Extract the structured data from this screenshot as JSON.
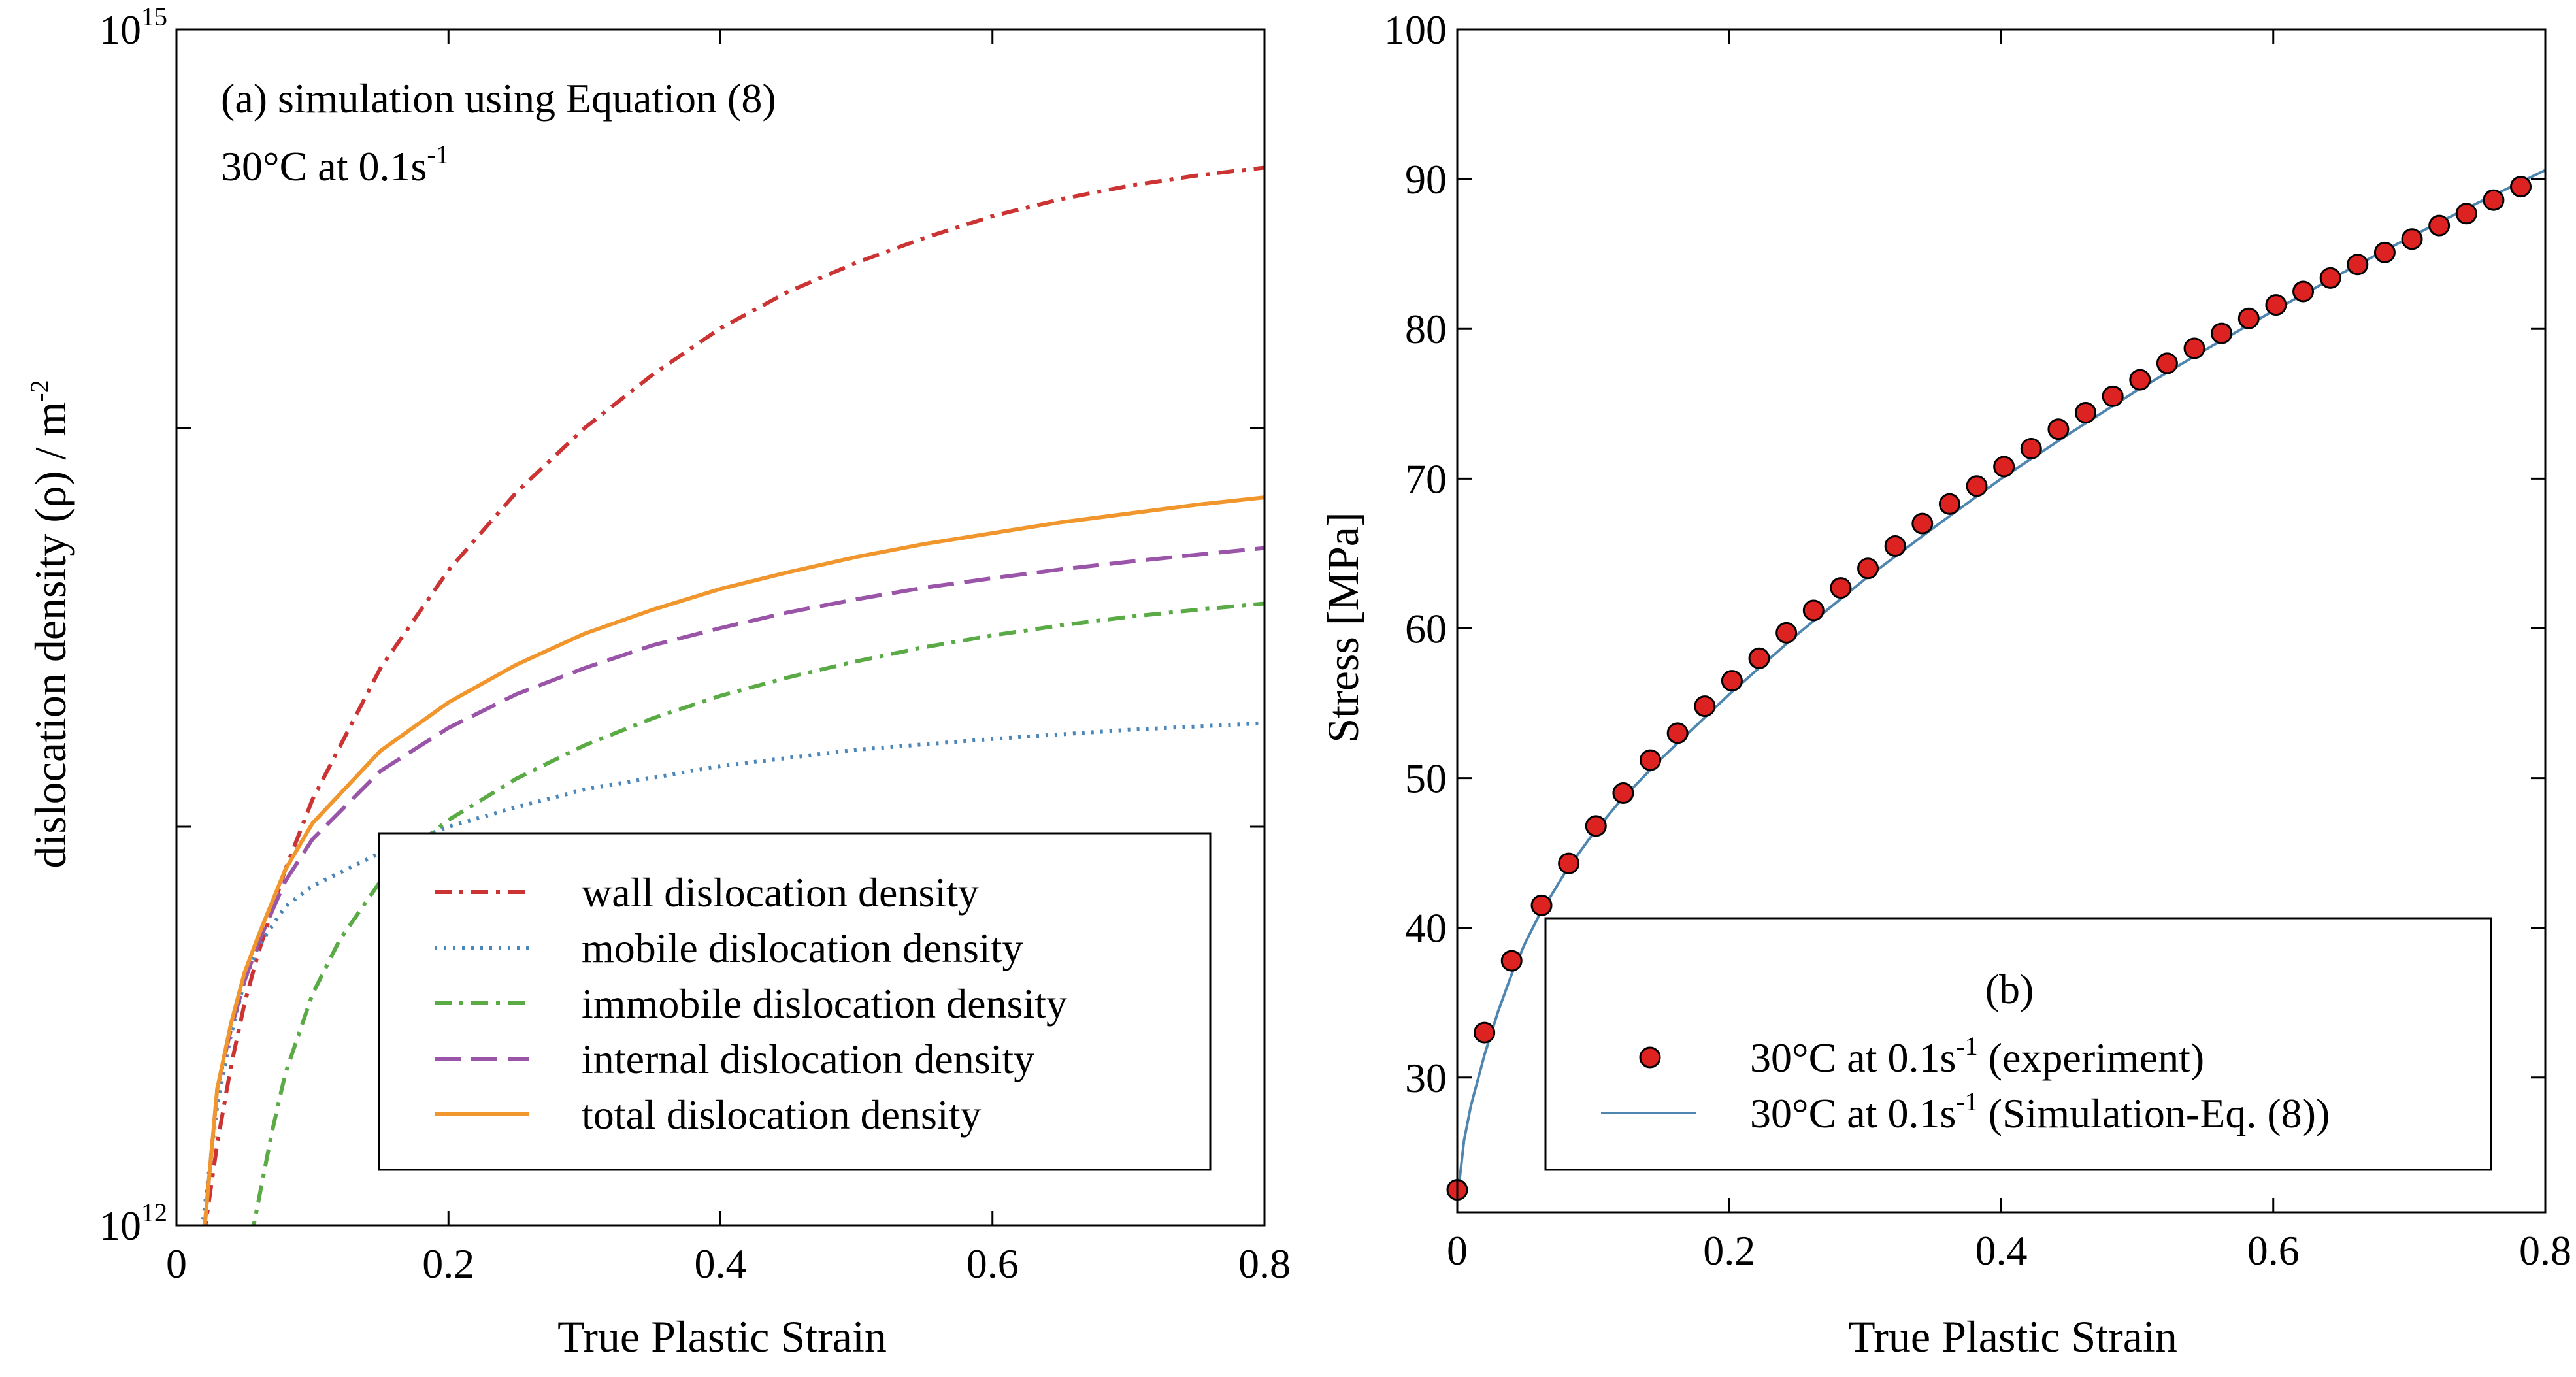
{
  "chart_data": [
    {
      "id": "a",
      "type": "line",
      "title": "(a) simulation using Equation (8)",
      "subtitle": {
        "main": "30°C at 0.1s",
        "sup": "-1"
      },
      "xlabel": "True Plastic Strain",
      "ylabel": {
        "main": "dislocation density (ρ) / m",
        "sup": "-2"
      },
      "xlim": [
        0,
        0.8
      ],
      "ylim": [
        1000000000000.0,
        1000000000000000.0
      ],
      "yscale": "log",
      "xticks": [
        {
          "v": 0,
          "label": "0"
        },
        {
          "v": 0.2,
          "label": "0.2"
        },
        {
          "v": 0.4,
          "label": "0.4"
        },
        {
          "v": 0.6,
          "label": "0.6"
        },
        {
          "v": 0.8,
          "label": "0.8"
        }
      ],
      "yticks": [
        {
          "v": 1000000000000.0,
          "base": "10",
          "exp": "12"
        },
        {
          "v": 1000000000000000.0,
          "base": "10",
          "exp": "15"
        }
      ],
      "y_minor_ticks": [
        10000000000000.0,
        100000000000000.0
      ],
      "legend_position": "lower-right",
      "series": [
        {
          "name": "wall dislocation density",
          "color": "#cc3333",
          "dash": "dashdot",
          "x": [
            0.02,
            0.03,
            0.04,
            0.05,
            0.06,
            0.08,
            0.1,
            0.15,
            0.2,
            0.25,
            0.3,
            0.35,
            0.4,
            0.45,
            0.5,
            0.55,
            0.6,
            0.65,
            0.7,
            0.75,
            0.8
          ],
          "y": [
            930000000000.0,
            1600000000000.0,
            2500000000000.0,
            3600000000000.0,
            4800000000000.0,
            7800000000000.0,
            11700000000000.0,
            25000000000000.0,
            44000000000000.0,
            69000000000000.0,
            100000000000000.0,
            136000000000000.0,
            178000000000000.0,
            220000000000000.0,
            260000000000000.0,
            300000000000000.0,
            340000000000000.0,
            375000000000000.0,
            405000000000000.0,
            430000000000000.0,
            450000000000000.0
          ]
        },
        {
          "name": "mobile dislocation density",
          "color": "#4a86b8",
          "dash": "dotted",
          "x": [
            0.018,
            0.03,
            0.04,
            0.05,
            0.06,
            0.08,
            0.1,
            0.15,
            0.2,
            0.25,
            0.3,
            0.4,
            0.5,
            0.6,
            0.7,
            0.8
          ],
          "y": [
            930000000000.0,
            2000000000000.0,
            3000000000000.0,
            4100000000000.0,
            5000000000000.0,
            6300000000000.0,
            7100000000000.0,
            8600000000000.0,
            10000000000000.0,
            11200000000000.0,
            12400000000000.0,
            14200000000000.0,
            15600000000000.0,
            16600000000000.0,
            17500000000000.0,
            18200000000000.0
          ]
        },
        {
          "name": "immobile dislocation density",
          "color": "#5aaa46",
          "dash": "dashdot",
          "x": [
            0.055,
            0.07,
            0.08,
            0.1,
            0.12,
            0.15,
            0.18,
            0.2,
            0.25,
            0.3,
            0.35,
            0.4,
            0.45,
            0.5,
            0.55,
            0.6,
            0.65,
            0.7,
            0.75,
            0.8
          ],
          "y": [
            930000000000.0,
            1700000000000.0,
            2400000000000.0,
            3800000000000.0,
            5200000000000.0,
            7300000000000.0,
            9200000000000.0,
            10400000000000.0,
            13200000000000.0,
            16000000000000.0,
            18700000000000.0,
            21300000000000.0,
            23700000000000.0,
            26000000000000.0,
            28200000000000.0,
            30200000000000.0,
            32000000000000.0,
            33600000000000.0,
            35000000000000.0,
            36300000000000.0
          ]
        },
        {
          "name": "internal dislocation density",
          "color": "#9a55a8",
          "dash": "dashed",
          "x": [
            0.02,
            0.03,
            0.04,
            0.05,
            0.06,
            0.08,
            0.1,
            0.15,
            0.2,
            0.25,
            0.3,
            0.35,
            0.4,
            0.45,
            0.5,
            0.55,
            0.6,
            0.65,
            0.7,
            0.75,
            0.8
          ],
          "y": [
            930000000000.0,
            2200000000000.0,
            3100000000000.0,
            4100000000000.0,
            5100000000000.0,
            7300000000000.0,
            9300000000000.0,
            13800000000000.0,
            17700000000000.0,
            21500000000000.0,
            25000000000000.0,
            28500000000000.0,
            31500000000000.0,
            34500000000000.0,
            37200000000000.0,
            39800000000000.0,
            42000000000000.0,
            44200000000000.0,
            46200000000000.0,
            48100000000000.0,
            50000000000000.0
          ]
        },
        {
          "name": "total dislocation density",
          "color": "#f0962d",
          "dash": "solid",
          "x": [
            0.02,
            0.03,
            0.04,
            0.05,
            0.06,
            0.08,
            0.1,
            0.15,
            0.2,
            0.25,
            0.3,
            0.35,
            0.4,
            0.45,
            0.5,
            0.55,
            0.6,
            0.65,
            0.7,
            0.75,
            0.8
          ],
          "y": [
            930000000000.0,
            2200000000000.0,
            3200000000000.0,
            4300000000000.0,
            5300000000000.0,
            7800000000000.0,
            10200000000000.0,
            15500000000000.0,
            20500000000000.0,
            25500000000000.0,
            30500000000000.0,
            35000000000000.0,
            39500000000000.0,
            43500000000000.0,
            47500000000000.0,
            51200000000000.0,
            54500000000000.0,
            58000000000000.0,
            61000000000000.0,
            64200000000000.0,
            67000000000000.0
          ]
        }
      ]
    },
    {
      "id": "b",
      "type": "scatter",
      "panel_label": "(b)",
      "xlabel": "True Plastic Strain",
      "ylabel": "Stress [MPa]",
      "xlim": [
        0,
        0.8
      ],
      "ylim": [
        21,
        100
      ],
      "xticks": [
        {
          "v": 0,
          "label": "0"
        },
        {
          "v": 0.2,
          "label": "0.2"
        },
        {
          "v": 0.4,
          "label": "0.4"
        },
        {
          "v": 0.6,
          "label": "0.6"
        },
        {
          "v": 0.8,
          "label": "0.8"
        }
      ],
      "yticks": [
        {
          "v": 30,
          "label": "30"
        },
        {
          "v": 40,
          "label": "40"
        },
        {
          "v": 50,
          "label": "50"
        },
        {
          "v": 60,
          "label": "60"
        },
        {
          "v": 70,
          "label": "70"
        },
        {
          "v": 80,
          "label": "80"
        },
        {
          "v": 90,
          "label": "90"
        },
        {
          "v": 100,
          "label": "100"
        }
      ],
      "legend_position": "lower-right",
      "series": [
        {
          "name": {
            "main": "30°C at 0.1s",
            "sup": "-1",
            "tail": " (experiment)"
          },
          "kind": "marker",
          "color": "#dd2222",
          "x": [
            0.0,
            0.02,
            0.04,
            0.062,
            0.082,
            0.102,
            0.122,
            0.142,
            0.162,
            0.182,
            0.202,
            0.222,
            0.242,
            0.262,
            0.282,
            0.302,
            0.322,
            0.342,
            0.362,
            0.382,
            0.402,
            0.422,
            0.442,
            0.462,
            0.482,
            0.502,
            0.522,
            0.542,
            0.562,
            0.582,
            0.602,
            0.622,
            0.642,
            0.662,
            0.682,
            0.702,
            0.722,
            0.742,
            0.762,
            0.782
          ],
          "y": [
            22.5,
            33.0,
            37.8,
            41.5,
            44.3,
            46.8,
            49.0,
            51.2,
            53.0,
            54.8,
            56.5,
            58.0,
            59.7,
            61.2,
            62.7,
            64.0,
            65.5,
            67.0,
            68.3,
            69.5,
            70.8,
            72.0,
            73.3,
            74.4,
            75.5,
            76.6,
            77.7,
            78.7,
            79.7,
            80.7,
            81.6,
            82.5,
            83.4,
            84.3,
            85.1,
            86.0,
            86.9,
            87.7,
            88.6,
            89.5
          ]
        },
        {
          "name": {
            "main": "30°C at 0.1s",
            "sup": "-1",
            "tail": " (Simulation-Eq. (8))"
          },
          "kind": "line",
          "color": "#4f86b0",
          "x": [
            0.0,
            0.005,
            0.01,
            0.02,
            0.03,
            0.04,
            0.05,
            0.06,
            0.08,
            0.1,
            0.12,
            0.15,
            0.2,
            0.25,
            0.3,
            0.35,
            0.4,
            0.45,
            0.5,
            0.55,
            0.6,
            0.65,
            0.7,
            0.75,
            0.8
          ],
          "y": [
            21.8,
            25.8,
            28.1,
            31.5,
            34.4,
            36.9,
            39.0,
            40.8,
            43.8,
            46.3,
            48.5,
            51.3,
            55.6,
            59.6,
            63.3,
            66.7,
            70.0,
            73.0,
            75.9,
            78.6,
            81.2,
            83.7,
            86.1,
            88.4,
            90.6
          ]
        }
      ]
    }
  ]
}
